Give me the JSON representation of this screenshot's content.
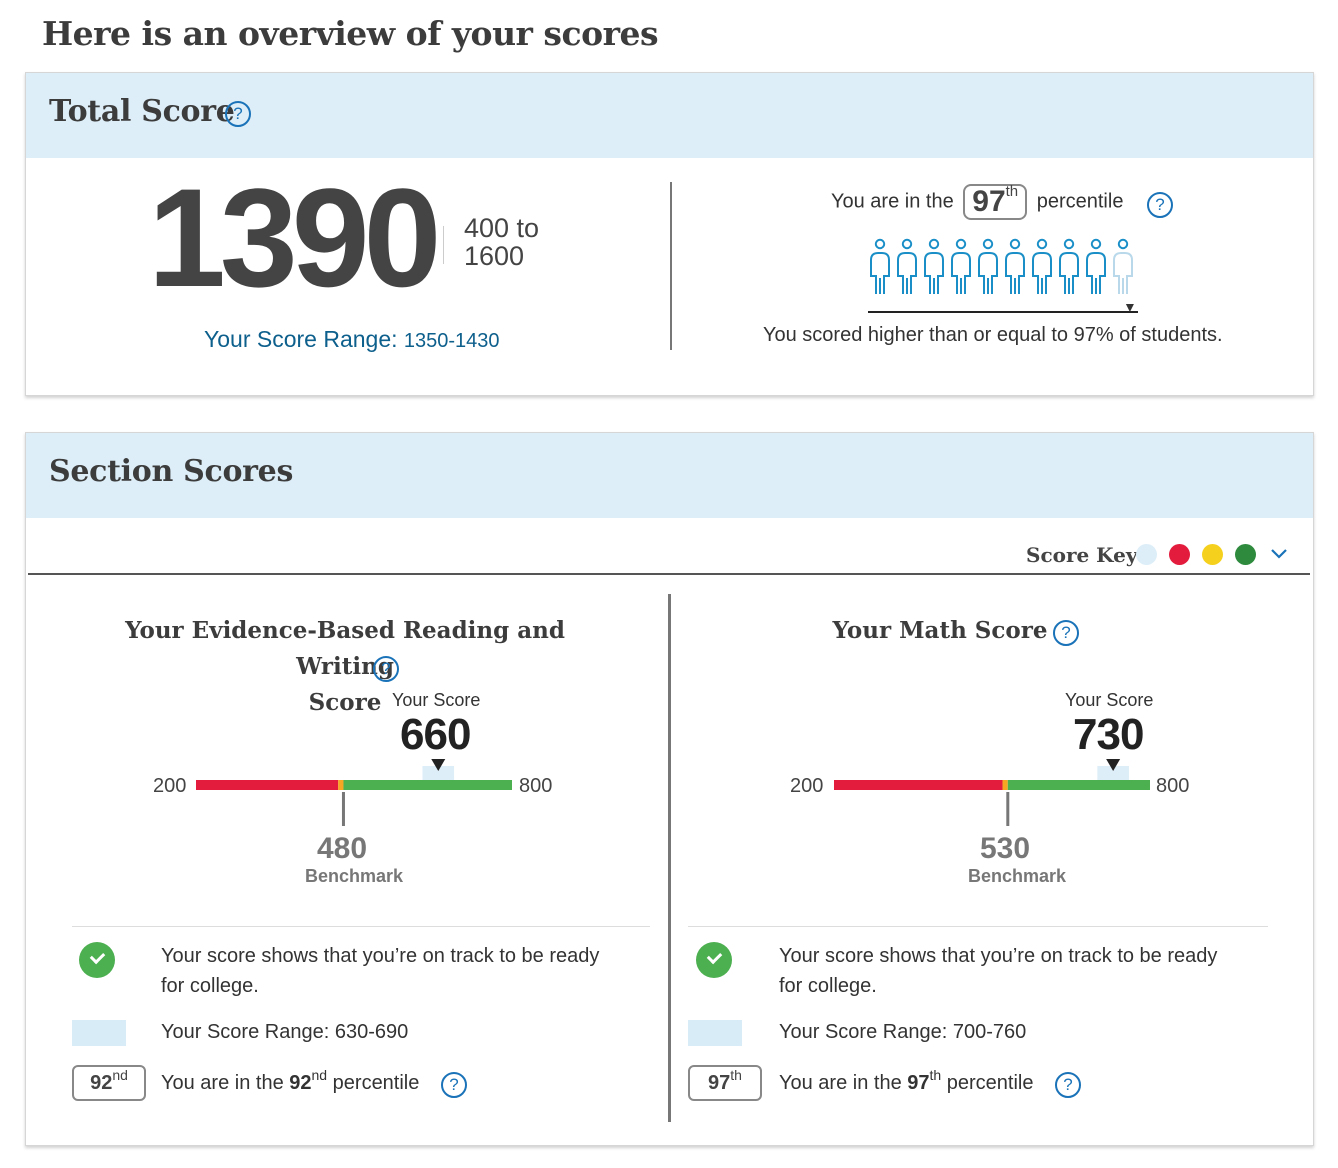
{
  "page": {
    "title": "Here is an overview of your scores"
  },
  "total": {
    "title": "Total Score",
    "help_icon": "help-circle-icon",
    "score": "1390",
    "range_top": "400 to",
    "range_bottom": "1600",
    "score_range_label": "Your Score Range:",
    "score_range_value": "1350-1430",
    "percentile_prefix": "You are in the",
    "percentile_value": "97",
    "percentile_suffix_sup": "th",
    "percentile_suffix": "percentile",
    "percentile_fraction": 0.97,
    "percentile_desc": "You scored higher than or equal to 97% of students."
  },
  "sections": {
    "title": "Section Scores",
    "score_key_label": "Score Key",
    "score_key_colors": [
      "#ddeef8",
      "#e31c3d",
      "#f5d11e",
      "#2e8b3e"
    ],
    "ebrw": {
      "title_line1": "Your Evidence-Based Reading and Writing",
      "title_line2": "Score",
      "your_score_label": "Your Score",
      "score": "660",
      "min": "200",
      "max": "800",
      "benchmark": "480",
      "benchmark_label": "Benchmark",
      "status_line1": "Your score shows that you’re on track to be ready",
      "status_line2": "for college.",
      "range_text": "Your Score Range: 630-690",
      "percentile_badge": "92",
      "percentile_badge_sup": "nd",
      "percentile_prefix": "You are in the",
      "percentile_value": "92",
      "percentile_sup": "nd",
      "percentile_suffix": "percentile"
    },
    "math": {
      "title": "Your Math Score",
      "your_score_label": "Your Score",
      "score": "730",
      "min": "200",
      "max": "800",
      "benchmark": "530",
      "benchmark_label": "Benchmark",
      "status_line1": "Your score shows that you’re on track to be ready",
      "status_line2": "for college.",
      "range_text": "Your Score Range: 700-760",
      "percentile_badge": "97",
      "percentile_badge_sup": "th",
      "percentile_prefix": "You are in the",
      "percentile_value": "97",
      "percentile_sup": "th",
      "percentile_suffix": "percentile"
    }
  }
}
